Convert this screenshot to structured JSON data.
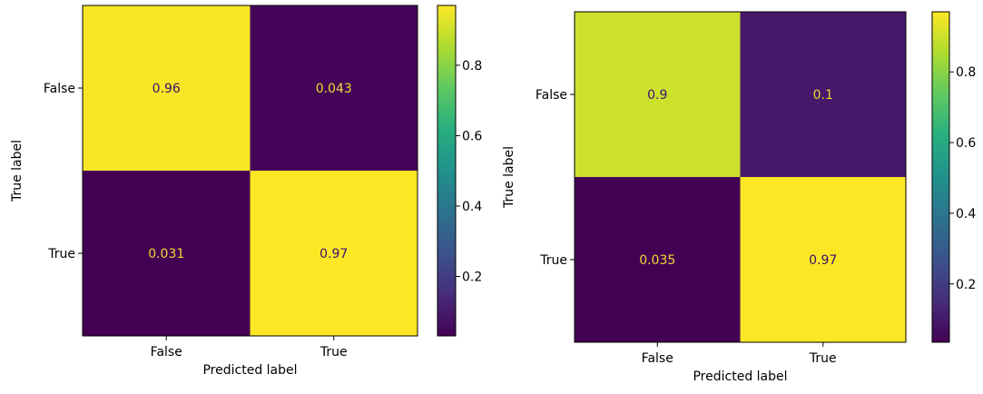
{
  "chart_data": [
    {
      "type": "heatmap",
      "x_categories": [
        "False",
        "True"
      ],
      "y_categories": [
        "False",
        "True"
      ],
      "values": [
        [
          0.96,
          0.043
        ],
        [
          0.031,
          0.97
        ]
      ],
      "labels": [
        [
          "0.96",
          "0.043"
        ],
        [
          "0.031",
          "0.97"
        ]
      ],
      "xlabel": "Predicted label",
      "ylabel": "True label",
      "colorbar": {
        "min": 0.031,
        "max": 0.97,
        "ticks": [
          0.2,
          0.4,
          0.6,
          0.8
        ],
        "tick_labels": [
          "0.2",
          "0.4",
          "0.6",
          "0.8"
        ]
      },
      "colormap": "viridis"
    },
    {
      "type": "heatmap",
      "x_categories": [
        "False",
        "True"
      ],
      "y_categories": [
        "False",
        "True"
      ],
      "values": [
        [
          0.9,
          0.1
        ],
        [
          0.035,
          0.97
        ]
      ],
      "labels": [
        [
          "0.9",
          "0.1"
        ],
        [
          "0.035",
          "0.97"
        ]
      ],
      "xlabel": "Predicted label",
      "ylabel": "True label",
      "colorbar": {
        "min": 0.035,
        "max": 0.97,
        "ticks": [
          0.2,
          0.4,
          0.6,
          0.8
        ],
        "tick_labels": [
          "0.2",
          "0.4",
          "0.6",
          "0.8"
        ]
      },
      "colormap": "viridis"
    }
  ],
  "colors": {
    "text_on_dark": "#f0d834",
    "text_on_light": "#3b0f70",
    "axis": "#000000"
  }
}
